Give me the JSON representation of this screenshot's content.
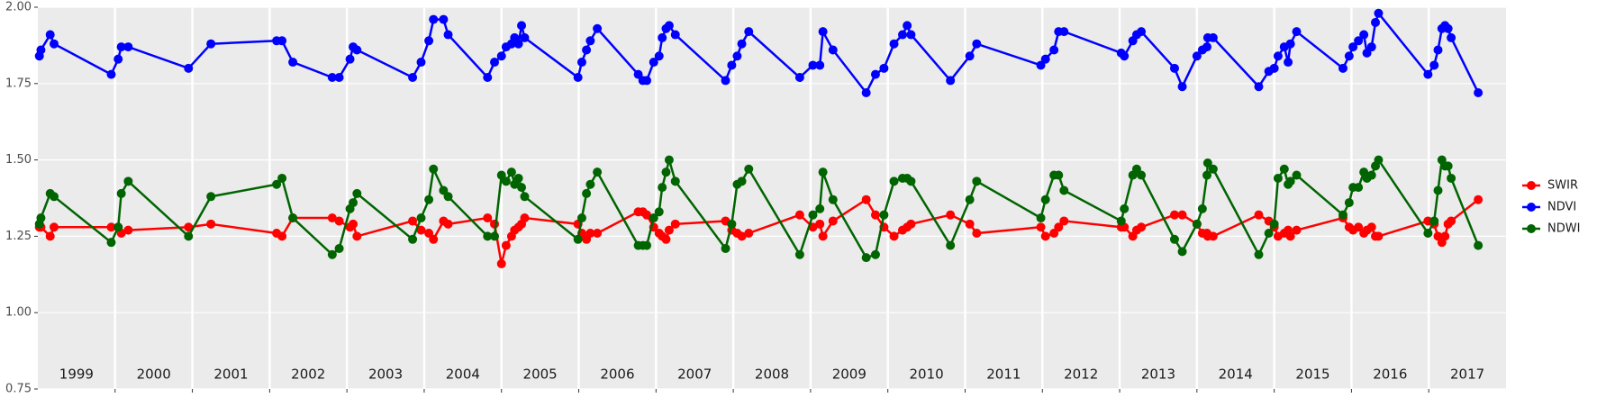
{
  "chart_data": {
    "type": "line",
    "x": [
      1999.02,
      1999.04,
      1999.16,
      1999.21,
      1999.95,
      2000.04,
      2000.08,
      2000.17,
      2000.95,
      2001.24,
      2002.09,
      2002.16,
      2002.3,
      2002.81,
      2002.9,
      2003.04,
      2003.08,
      2003.13,
      2003.85,
      2003.96,
      2004.06,
      2004.12,
      2004.25,
      2004.31,
      2004.82,
      2004.91,
      2005.0,
      2005.06,
      2005.13,
      2005.17,
      2005.22,
      2005.26,
      2005.3,
      2005.99,
      2006.04,
      2006.1,
      2006.15,
      2006.24,
      2006.77,
      2006.83,
      2006.88,
      2006.97,
      2007.04,
      2007.08,
      2007.13,
      2007.17,
      2007.25,
      2007.9,
      2007.98,
      2008.05,
      2008.11,
      2008.2,
      2008.86,
      2009.03,
      2009.12,
      2009.16,
      2009.29,
      2009.72,
      2009.84,
      2009.95,
      2010.08,
      2010.19,
      2010.25,
      2010.3,
      2010.81,
      2011.06,
      2011.15,
      2011.98,
      2012.04,
      2012.15,
      2012.21,
      2012.28,
      2013.02,
      2013.06,
      2013.17,
      2013.22,
      2013.28,
      2013.71,
      2013.81,
      2014.0,
      2014.07,
      2014.13,
      2014.14,
      2014.21,
      2014.8,
      2014.93,
      2015.0,
      2015.05,
      2015.13,
      2015.18,
      2015.21,
      2015.29,
      2015.89,
      2015.97,
      2016.02,
      2016.09,
      2016.16,
      2016.2,
      2016.26,
      2016.31,
      2016.35,
      2016.99,
      2017.07,
      2017.12,
      2017.17,
      2017.21,
      2017.25,
      2017.29,
      2017.64
    ],
    "series": [
      {
        "name": "SWIR",
        "color": "#ff0000",
        "values": [
          1.28,
          1.28,
          1.25,
          1.28,
          1.28,
          1.28,
          1.26,
          1.27,
          1.28,
          1.29,
          1.26,
          1.25,
          1.31,
          1.31,
          1.3,
          1.28,
          1.29,
          1.25,
          1.3,
          1.27,
          1.26,
          1.24,
          1.3,
          1.29,
          1.31,
          1.29,
          1.16,
          1.22,
          1.25,
          1.27,
          1.28,
          1.29,
          1.31,
          1.29,
          1.26,
          1.24,
          1.26,
          1.26,
          1.33,
          1.33,
          1.32,
          1.28,
          1.26,
          1.25,
          1.24,
          1.27,
          1.29,
          1.3,
          1.27,
          1.26,
          1.25,
          1.26,
          1.32,
          1.28,
          1.29,
          1.25,
          1.3,
          1.37,
          1.32,
          1.28,
          1.25,
          1.27,
          1.28,
          1.29,
          1.32,
          1.29,
          1.26,
          1.28,
          1.25,
          1.26,
          1.28,
          1.3,
          1.28,
          1.28,
          1.25,
          1.27,
          1.28,
          1.32,
          1.32,
          1.29,
          1.26,
          1.26,
          1.25,
          1.25,
          1.32,
          1.3,
          1.28,
          1.25,
          1.26,
          1.27,
          1.25,
          1.27,
          1.31,
          1.28,
          1.27,
          1.28,
          1.26,
          1.27,
          1.28,
          1.25,
          1.25,
          1.3,
          1.29,
          1.25,
          1.23,
          1.25,
          1.29,
          1.3,
          1.37
        ]
      },
      {
        "name": "NDVI",
        "color": "#0000ff",
        "values": [
          1.84,
          1.86,
          1.91,
          1.88,
          1.78,
          1.83,
          1.87,
          1.87,
          1.8,
          1.88,
          1.89,
          1.89,
          1.82,
          1.77,
          1.77,
          1.83,
          1.87,
          1.86,
          1.77,
          1.82,
          1.89,
          1.96,
          1.96,
          1.91,
          1.77,
          1.82,
          1.84,
          1.87,
          1.88,
          1.9,
          1.88,
          1.94,
          1.9,
          1.77,
          1.82,
          1.86,
          1.89,
          1.93,
          1.78,
          1.76,
          1.76,
          1.82,
          1.84,
          1.9,
          1.93,
          1.94,
          1.91,
          1.76,
          1.81,
          1.84,
          1.88,
          1.92,
          1.77,
          1.81,
          1.81,
          1.92,
          1.86,
          1.72,
          1.78,
          1.8,
          1.88,
          1.91,
          1.94,
          1.91,
          1.76,
          1.84,
          1.88,
          1.81,
          1.83,
          1.86,
          1.92,
          1.92,
          1.85,
          1.84,
          1.89,
          1.91,
          1.92,
          1.8,
          1.74,
          1.84,
          1.86,
          1.87,
          1.9,
          1.9,
          1.74,
          1.79,
          1.8,
          1.84,
          1.87,
          1.82,
          1.88,
          1.92,
          1.8,
          1.84,
          1.87,
          1.89,
          1.91,
          1.85,
          1.87,
          1.95,
          1.98,
          1.78,
          1.81,
          1.86,
          1.93,
          1.94,
          1.93,
          1.9,
          1.72
        ]
      },
      {
        "name": "NDWI",
        "color": "#006400",
        "values": [
          1.29,
          1.31,
          1.39,
          1.38,
          1.23,
          1.28,
          1.39,
          1.43,
          1.25,
          1.38,
          1.42,
          1.44,
          1.31,
          1.19,
          1.21,
          1.34,
          1.36,
          1.39,
          1.24,
          1.31,
          1.37,
          1.47,
          1.4,
          1.38,
          1.25,
          1.25,
          1.45,
          1.43,
          1.46,
          1.42,
          1.44,
          1.41,
          1.38,
          1.24,
          1.31,
          1.39,
          1.42,
          1.46,
          1.22,
          1.22,
          1.22,
          1.31,
          1.33,
          1.41,
          1.46,
          1.5,
          1.43,
          1.21,
          1.29,
          1.42,
          1.43,
          1.47,
          1.19,
          1.32,
          1.34,
          1.46,
          1.37,
          1.18,
          1.19,
          1.32,
          1.43,
          1.44,
          1.44,
          1.43,
          1.22,
          1.37,
          1.43,
          1.31,
          1.37,
          1.45,
          1.45,
          1.4,
          1.3,
          1.34,
          1.45,
          1.47,
          1.45,
          1.24,
          1.2,
          1.29,
          1.34,
          1.45,
          1.49,
          1.47,
          1.19,
          1.26,
          1.29,
          1.44,
          1.47,
          1.42,
          1.43,
          1.45,
          1.32,
          1.36,
          1.41,
          1.41,
          1.46,
          1.44,
          1.45,
          1.48,
          1.5,
          1.26,
          1.3,
          1.4,
          1.5,
          1.48,
          1.48,
          1.44,
          1.22
        ]
      }
    ],
    "xlim": [
      1999.0,
      2018.0
    ],
    "xticks": [
      {
        "value": 1999.5,
        "label": "1999"
      },
      {
        "value": 2000.5,
        "label": "2000"
      },
      {
        "value": 2001.5,
        "label": "2001"
      },
      {
        "value": 2002.5,
        "label": "2002"
      },
      {
        "value": 2003.5,
        "label": "2003"
      },
      {
        "value": 2004.5,
        "label": "2004"
      },
      {
        "value": 2005.5,
        "label": "2005"
      },
      {
        "value": 2006.5,
        "label": "2006"
      },
      {
        "value": 2007.5,
        "label": "2007"
      },
      {
        "value": 2008.5,
        "label": "2008"
      },
      {
        "value": 2009.5,
        "label": "2009"
      },
      {
        "value": 2010.5,
        "label": "2010"
      },
      {
        "value": 2011.5,
        "label": "2011"
      },
      {
        "value": 2012.5,
        "label": "2012"
      },
      {
        "value": 2013.5,
        "label": "2013"
      },
      {
        "value": 2014.5,
        "label": "2014"
      },
      {
        "value": 2015.5,
        "label": "2015"
      },
      {
        "value": 2016.5,
        "label": "2016"
      },
      {
        "value": 2017.5,
        "label": "2017"
      }
    ],
    "x_gridlines": [
      2000,
      2001,
      2002,
      2003,
      2004,
      2005,
      2006,
      2007,
      2008,
      2009,
      2010,
      2011,
      2012,
      2013,
      2014,
      2015,
      2016,
      2017
    ],
    "ylim": [
      0.75,
      2.0
    ],
    "yticks": [
      {
        "value": 0.75,
        "label": "0.75"
      },
      {
        "value": 1.0,
        "label": "1.00"
      },
      {
        "value": 1.25,
        "label": "1.25"
      },
      {
        "value": 1.5,
        "label": "1.50"
      },
      {
        "value": 1.75,
        "label": "1.75"
      },
      {
        "value": 2.0,
        "label": "2.00"
      }
    ],
    "grid": true,
    "legend": "right"
  }
}
